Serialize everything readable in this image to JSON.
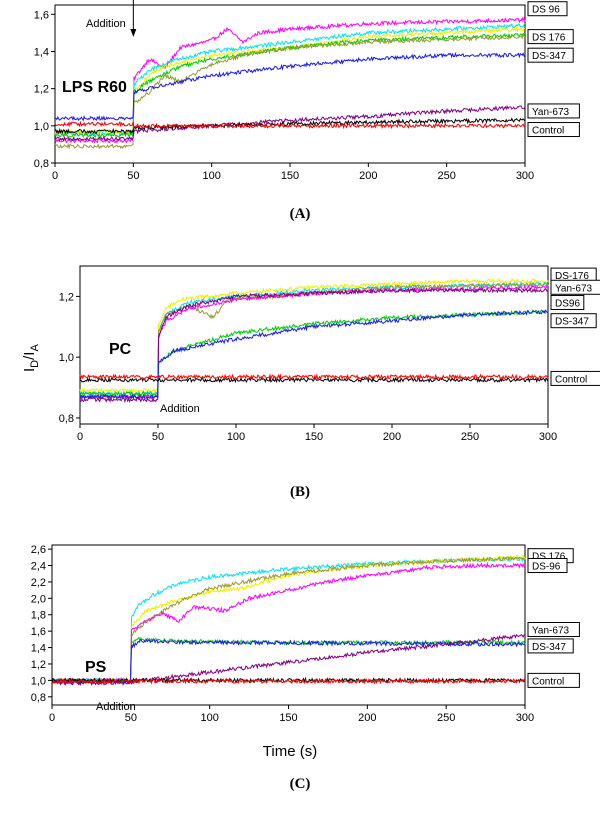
{
  "figure": {
    "ylabel_main": "I",
    "ylabel_sub1": "D",
    "ylabel_mid": "/I",
    "ylabel_sub2": "A",
    "xlabel": "Time (s)"
  },
  "chart_data": [
    {
      "type": "line",
      "panel_label": "(A)",
      "sample_label": "LPS R60",
      "annotation": "Addition",
      "xlim": [
        0,
        300
      ],
      "ylim": [
        0.8,
        1.65
      ],
      "xticks": [
        0,
        50,
        100,
        150,
        200,
        250,
        300
      ],
      "yticks": [
        0.8,
        1.0,
        1.2,
        1.4,
        1.6
      ],
      "ytick_labels": [
        "0,8",
        "1,0",
        "1,2",
        "1,4",
        "1,6"
      ],
      "grid": false,
      "right_labels": [
        {
          "text": "DS 96",
          "y": 1.63
        },
        {
          "text": "DS 176",
          "y": 1.48
        },
        {
          "text": "DS-347",
          "y": 1.38
        },
        {
          "text": "Yan-673",
          "y": 1.08
        },
        {
          "text": "Control",
          "y": 0.98
        }
      ],
      "series": [
        {
          "color": "#ff00ff",
          "pre": 0.92,
          "post": [
            [
              50,
              1.25
            ],
            [
              60,
              1.36
            ],
            [
              70,
              1.31
            ],
            [
              80,
              1.42
            ],
            [
              100,
              1.46
            ],
            [
              110,
              1.52
            ],
            [
              120,
              1.45
            ],
            [
              130,
              1.5
            ],
            [
              150,
              1.52
            ],
            [
              200,
              1.55
            ],
            [
              250,
              1.56
            ],
            [
              300,
              1.57
            ]
          ]
        },
        {
          "color": "#00e5ee",
          "pre": 0.96,
          "post": [
            [
              50,
              1.22
            ],
            [
              60,
              1.3
            ],
            [
              75,
              1.35
            ],
            [
              100,
              1.4
            ],
            [
              150,
              1.45
            ],
            [
              200,
              1.5
            ],
            [
              250,
              1.52
            ],
            [
              300,
              1.54
            ]
          ]
        },
        {
          "color": "#eeee00",
          "pre": 0.97,
          "post": [
            [
              50,
              1.18
            ],
            [
              60,
              1.27
            ],
            [
              70,
              1.32
            ],
            [
              100,
              1.38
            ],
            [
              150,
              1.42
            ],
            [
              200,
              1.48
            ],
            [
              250,
              1.5
            ],
            [
              300,
              1.52
            ]
          ]
        },
        {
          "color": "#00cc00",
          "pre": 0.95,
          "post": [
            [
              50,
              1.18
            ],
            [
              60,
              1.24
            ],
            [
              80,
              1.32
            ],
            [
              100,
              1.36
            ],
            [
              150,
              1.42
            ],
            [
              200,
              1.46
            ],
            [
              300,
              1.49
            ]
          ]
        },
        {
          "color": "#999933",
          "pre": 0.89,
          "post": [
            [
              50,
              1.12
            ],
            [
              60,
              1.18
            ],
            [
              70,
              1.27
            ],
            [
              80,
              1.24
            ],
            [
              100,
              1.33
            ],
            [
              120,
              1.38
            ],
            [
              150,
              1.42
            ],
            [
              200,
              1.45
            ],
            [
              300,
              1.48
            ]
          ]
        },
        {
          "color": "#1a1aee",
          "pre": 1.04,
          "post": [
            [
              50,
              1.18
            ],
            [
              70,
              1.22
            ],
            [
              100,
              1.27
            ],
            [
              150,
              1.32
            ],
            [
              200,
              1.36
            ],
            [
              250,
              1.38
            ],
            [
              300,
              1.38
            ]
          ]
        },
        {
          "color": "#800080",
          "pre": 0.93,
          "post": [
            [
              50,
              0.97
            ],
            [
              100,
              1.0
            ],
            [
              150,
              1.03
            ],
            [
              200,
              1.05
            ],
            [
              250,
              1.08
            ],
            [
              300,
              1.1
            ]
          ]
        },
        {
          "color": "#000000",
          "pre": 0.97,
          "post": [
            [
              50,
              0.99
            ],
            [
              100,
              1.0
            ],
            [
              150,
              1.01
            ],
            [
              200,
              1.02
            ],
            [
              300,
              1.03
            ]
          ]
        },
        {
          "color": "#ff0000",
          "pre": 1.01,
          "post": [
            [
              50,
              1.0
            ],
            [
              100,
              1.0
            ],
            [
              200,
              1.0
            ],
            [
              300,
              1.0
            ]
          ]
        }
      ]
    },
    {
      "type": "line",
      "panel_label": "(B)",
      "sample_label": "PC",
      "annotation": "Addition",
      "xlim": [
        0,
        300
      ],
      "ylim": [
        0.78,
        1.3
      ],
      "xticks": [
        0,
        50,
        100,
        150,
        200,
        250,
        300
      ],
      "yticks": [
        0.8,
        1.0,
        1.2
      ],
      "ytick_labels": [
        "0,8",
        "1,0",
        "1,2"
      ],
      "grid": false,
      "right_labels": [
        {
          "text": "DS-176",
          "y": 1.27
        },
        {
          "text": "Yan-673",
          "y": 1.23
        },
        {
          "text": "DS96",
          "y": 1.18
        },
        {
          "text": "DS-347",
          "y": 1.12
        },
        {
          "text": "Control",
          "y": 0.93
        }
      ],
      "series": [
        {
          "color": "#eeee00",
          "pre": 0.89,
          "post": [
            [
              50,
              1.1
            ],
            [
              55,
              1.16
            ],
            [
              65,
              1.19
            ],
            [
              100,
              1.21
            ],
            [
              150,
              1.23
            ],
            [
              200,
              1.24
            ],
            [
              250,
              1.25
            ],
            [
              300,
              1.25
            ]
          ]
        },
        {
          "color": "#00e5ee",
          "pre": 0.88,
          "post": [
            [
              50,
              1.08
            ],
            [
              55,
              1.14
            ],
            [
              70,
              1.18
            ],
            [
              100,
              1.2
            ],
            [
              150,
              1.22
            ],
            [
              200,
              1.23
            ],
            [
              300,
              1.24
            ]
          ]
        },
        {
          "color": "#999933",
          "pre": 0.87,
          "post": [
            [
              50,
              1.08
            ],
            [
              55,
              1.14
            ],
            [
              70,
              1.17
            ],
            [
              85,
              1.13
            ],
            [
              95,
              1.19
            ],
            [
              150,
              1.21
            ],
            [
              200,
              1.23
            ],
            [
              300,
              1.24
            ]
          ]
        },
        {
          "color": "#ff00ff",
          "pre": 0.87,
          "post": [
            [
              50,
              1.06
            ],
            [
              55,
              1.12
            ],
            [
              70,
              1.16
            ],
            [
              100,
              1.19
            ],
            [
              150,
              1.21
            ],
            [
              200,
              1.22
            ],
            [
              300,
              1.23
            ]
          ]
        },
        {
          "color": "#800080",
          "pre": 0.86,
          "post": [
            [
              50,
              1.06
            ],
            [
              55,
              1.13
            ],
            [
              70,
              1.17
            ],
            [
              100,
              1.2
            ],
            [
              150,
              1.21
            ],
            [
              200,
              1.22
            ],
            [
              300,
              1.22
            ]
          ]
        },
        {
          "color": "#00cc00",
          "pre": 0.88,
          "post": [
            [
              50,
              0.98
            ],
            [
              60,
              1.02
            ],
            [
              80,
              1.05
            ],
            [
              100,
              1.08
            ],
            [
              150,
              1.11
            ],
            [
              200,
              1.13
            ],
            [
              250,
              1.14
            ],
            [
              300,
              1.15
            ]
          ]
        },
        {
          "color": "#1a1aee",
          "pre": 0.87,
          "post": [
            [
              50,
              0.98
            ],
            [
              60,
              1.02
            ],
            [
              80,
              1.04
            ],
            [
              100,
              1.06
            ],
            [
              150,
              1.1
            ],
            [
              200,
              1.12
            ],
            [
              250,
              1.14
            ],
            [
              300,
              1.15
            ]
          ]
        },
        {
          "color": "#000000",
          "pre": 0.925,
          "post": [
            [
              50,
              0.925
            ],
            [
              150,
              0.925
            ],
            [
              300,
              0.925
            ]
          ]
        },
        {
          "color": "#ff0000",
          "pre": 0.935,
          "post": [
            [
              50,
              0.935
            ],
            [
              150,
              0.935
            ],
            [
              300,
              0.935
            ]
          ]
        }
      ]
    },
    {
      "type": "line",
      "panel_label": "(C)",
      "sample_label": "PS",
      "annotation": "Addition",
      "xlim": [
        0,
        300
      ],
      "ylim": [
        0.7,
        2.65
      ],
      "xticks": [
        0,
        50,
        100,
        150,
        200,
        250,
        300
      ],
      "yticks": [
        0.8,
        1.0,
        1.2,
        1.4,
        1.6,
        1.8,
        2.0,
        2.2,
        2.4,
        2.6
      ],
      "ytick_labels": [
        "0,8",
        "1,0",
        "1,2",
        "1,4",
        "1,6",
        "1,8",
        "2,0",
        "2,2",
        "2,4",
        "2,6"
      ],
      "grid": false,
      "right_labels": [
        {
          "text": "DS 176",
          "y": 2.52
        },
        {
          "text": "DS-96",
          "y": 2.4
        },
        {
          "text": "Yan-673",
          "y": 1.62
        },
        {
          "text": "DS-347",
          "y": 1.42
        },
        {
          "text": "Control",
          "y": 1.0
        }
      ],
      "series": [
        {
          "color": "#00e5ee",
          "pre": 1.0,
          "post": [
            [
              50,
              1.75
            ],
            [
              55,
              1.92
            ],
            [
              65,
              2.05
            ],
            [
              80,
              2.18
            ],
            [
              100,
              2.26
            ],
            [
              150,
              2.36
            ],
            [
              200,
              2.42
            ],
            [
              250,
              2.46
            ],
            [
              300,
              2.48
            ]
          ]
        },
        {
          "color": "#eeee00",
          "pre": 1.0,
          "post": [
            [
              50,
              1.65
            ],
            [
              60,
              1.85
            ],
            [
              80,
              1.98
            ],
            [
              100,
              2.08
            ],
            [
              120,
              2.12
            ],
            [
              150,
              2.28
            ],
            [
              200,
              2.4
            ],
            [
              250,
              2.46
            ],
            [
              300,
              2.5
            ]
          ]
        },
        {
          "color": "#999933",
          "pre": 0.99,
          "post": [
            [
              50,
              1.55
            ],
            [
              60,
              1.72
            ],
            [
              80,
              1.95
            ],
            [
              100,
              2.12
            ],
            [
              150,
              2.3
            ],
            [
              200,
              2.4
            ],
            [
              250,
              2.46
            ],
            [
              300,
              2.49
            ]
          ]
        },
        {
          "color": "#ff00ff",
          "pre": 1.0,
          "post": [
            [
              50,
              1.6
            ],
            [
              60,
              1.72
            ],
            [
              70,
              1.82
            ],
            [
              80,
              1.72
            ],
            [
              90,
              1.9
            ],
            [
              110,
              1.85
            ],
            [
              125,
              2.0
            ],
            [
              150,
              2.1
            ],
            [
              180,
              2.22
            ],
            [
              210,
              2.3
            ],
            [
              240,
              2.38
            ],
            [
              270,
              2.4
            ],
            [
              300,
              2.4
            ]
          ]
        },
        {
          "color": "#00cc00",
          "pre": 0.99,
          "post": [
            [
              50,
              1.45
            ],
            [
              55,
              1.5
            ],
            [
              70,
              1.49
            ],
            [
              100,
              1.47
            ],
            [
              150,
              1.46
            ],
            [
              200,
              1.46
            ],
            [
              300,
              1.46
            ]
          ]
        },
        {
          "color": "#1a1aee",
          "pre": 0.98,
          "post": [
            [
              50,
              1.4
            ],
            [
              55,
              1.48
            ],
            [
              70,
              1.47
            ],
            [
              100,
              1.46
            ],
            [
              150,
              1.46
            ],
            [
              200,
              1.45
            ],
            [
              300,
              1.44
            ]
          ]
        },
        {
          "color": "#800080",
          "pre": 0.97,
          "post": [
            [
              50,
              0.98
            ],
            [
              100,
              1.1
            ],
            [
              150,
              1.22
            ],
            [
              200,
              1.34
            ],
            [
              250,
              1.44
            ],
            [
              300,
              1.55
            ]
          ]
        },
        {
          "color": "#000000",
          "pre": 1.0,
          "post": [
            [
              50,
              1.0
            ],
            [
              300,
              1.0
            ]
          ]
        },
        {
          "color": "#ff0000",
          "pre": 0.985,
          "post": [
            [
              50,
              0.99
            ],
            [
              300,
              0.99
            ]
          ]
        }
      ]
    }
  ]
}
